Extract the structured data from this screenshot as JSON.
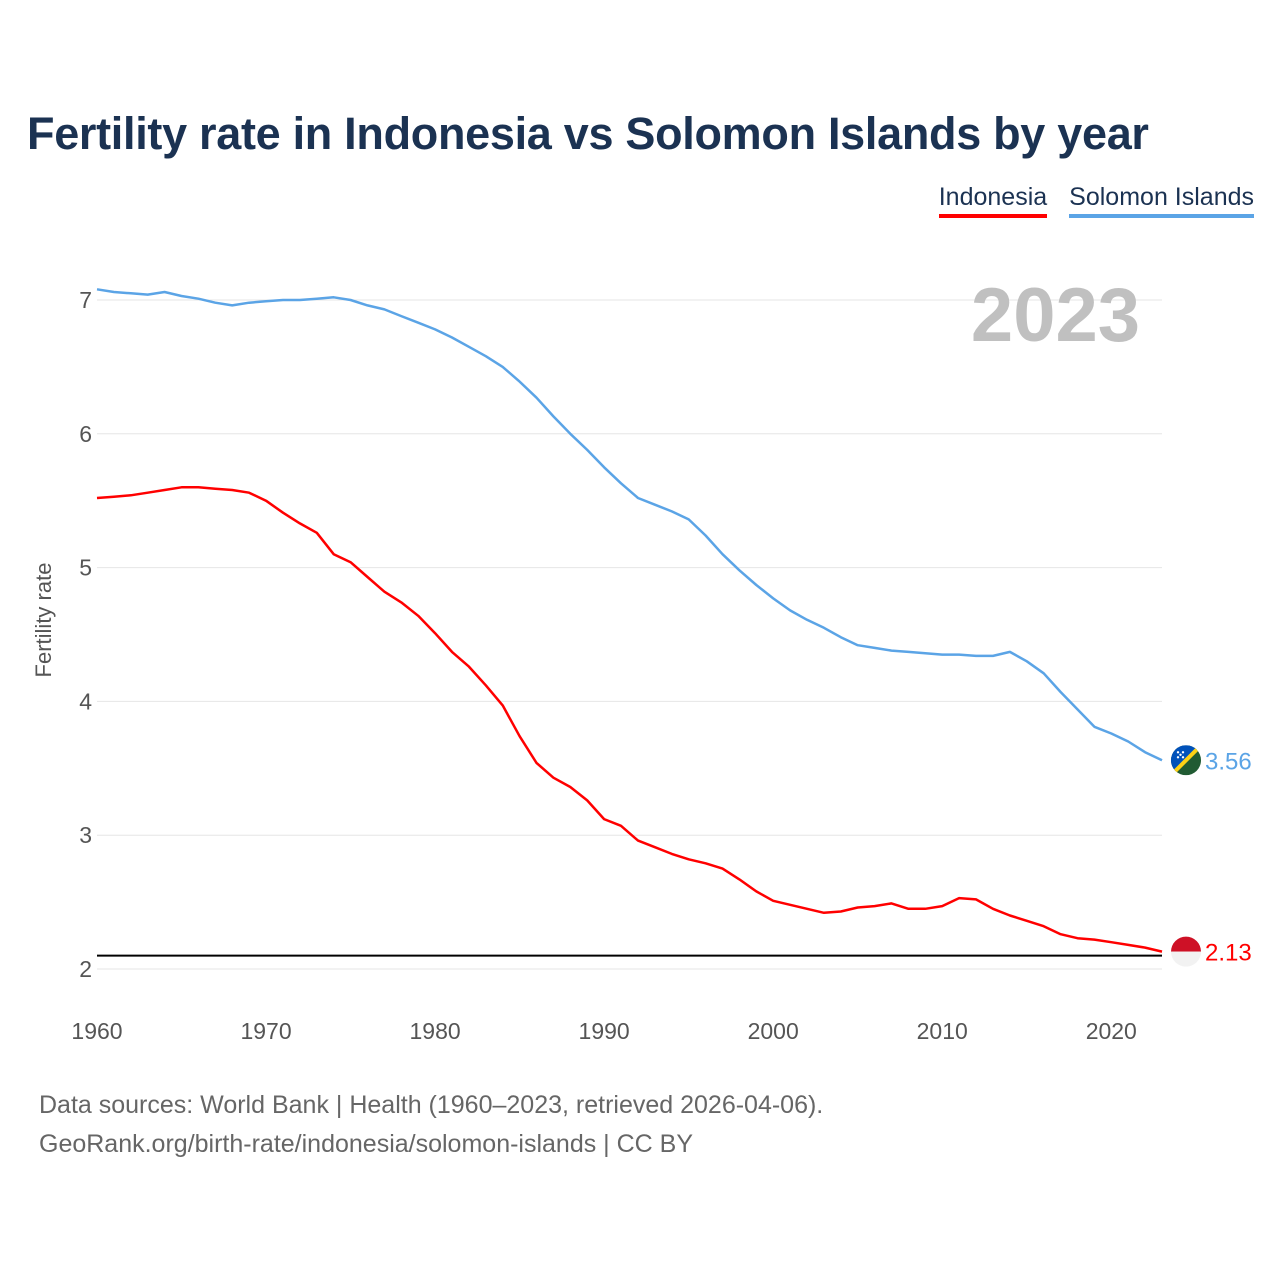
{
  "title": "Fertility rate in Indonesia vs Solomon Islands by year",
  "legend": {
    "indonesia": "Indonesia",
    "solomon": "Solomon Islands"
  },
  "year_label": "2023",
  "footer": {
    "line1": "Data sources: World Bank | Health (1960–2023, retrieved 2026-04-06).",
    "line2": "GeoRank.org/birth-rate/indonesia/solomon-islands | CC BY"
  },
  "colors": {
    "indonesia": "#ff0000",
    "solomon": "#5ba4e6",
    "title": "#1b3252"
  },
  "chart_data": {
    "type": "line",
    "title": "Fertility rate in Indonesia vs Solomon Islands by year",
    "xlabel": "",
    "ylabel": "Fertility rate",
    "xlim": [
      1960,
      2023
    ],
    "ylim": [
      2,
      7.1
    ],
    "yticks": [
      2,
      3,
      4,
      5,
      6,
      7
    ],
    "xticks": [
      1960,
      1970,
      1980,
      1990,
      2000,
      2010,
      2020
    ],
    "reference_line": 2.1,
    "x": [
      1960,
      1961,
      1962,
      1963,
      1964,
      1965,
      1966,
      1967,
      1968,
      1969,
      1970,
      1971,
      1972,
      1973,
      1974,
      1975,
      1976,
      1977,
      1978,
      1979,
      1980,
      1981,
      1982,
      1983,
      1984,
      1985,
      1986,
      1987,
      1988,
      1989,
      1990,
      1991,
      1992,
      1993,
      1994,
      1995,
      1996,
      1997,
      1998,
      1999,
      2000,
      2001,
      2002,
      2003,
      2004,
      2005,
      2006,
      2007,
      2008,
      2009,
      2010,
      2011,
      2012,
      2013,
      2014,
      2015,
      2016,
      2017,
      2018,
      2019,
      2020,
      2021,
      2022,
      2023
    ],
    "series": [
      {
        "name": "Indonesia",
        "end_label": "2.13",
        "values": [
          5.52,
          5.53,
          5.54,
          5.56,
          5.58,
          5.6,
          5.6,
          5.59,
          5.58,
          5.56,
          5.5,
          5.41,
          5.33,
          5.26,
          5.1,
          5.04,
          4.93,
          4.82,
          4.74,
          4.64,
          4.51,
          4.37,
          4.26,
          4.12,
          3.97,
          3.74,
          3.54,
          3.43,
          3.36,
          3.26,
          3.12,
          3.07,
          2.96,
          2.91,
          2.86,
          2.82,
          2.79,
          2.75,
          2.67,
          2.58,
          2.51,
          2.48,
          2.45,
          2.42,
          2.43,
          2.46,
          2.47,
          2.49,
          2.45,
          2.45,
          2.47,
          2.53,
          2.52,
          2.45,
          2.4,
          2.36,
          2.32,
          2.26,
          2.23,
          2.22,
          2.2,
          2.18,
          2.16,
          2.13
        ]
      },
      {
        "name": "Solomon Islands",
        "end_label": "3.56",
        "values": [
          7.08,
          7.06,
          7.05,
          7.04,
          7.06,
          7.03,
          7.01,
          6.98,
          6.96,
          6.98,
          6.99,
          7.0,
          7.0,
          7.01,
          7.02,
          7.0,
          6.96,
          6.93,
          6.88,
          6.83,
          6.78,
          6.72,
          6.65,
          6.58,
          6.5,
          6.39,
          6.27,
          6.13,
          6.0,
          5.88,
          5.75,
          5.63,
          5.52,
          5.47,
          5.42,
          5.36,
          5.24,
          5.1,
          4.98,
          4.87,
          4.77,
          4.68,
          4.61,
          4.55,
          4.48,
          4.42,
          4.4,
          4.38,
          4.37,
          4.36,
          4.35,
          4.35,
          4.34,
          4.34,
          4.37,
          4.3,
          4.21,
          4.07,
          3.94,
          3.81,
          3.76,
          3.7,
          3.62,
          3.56
        ]
      }
    ]
  }
}
